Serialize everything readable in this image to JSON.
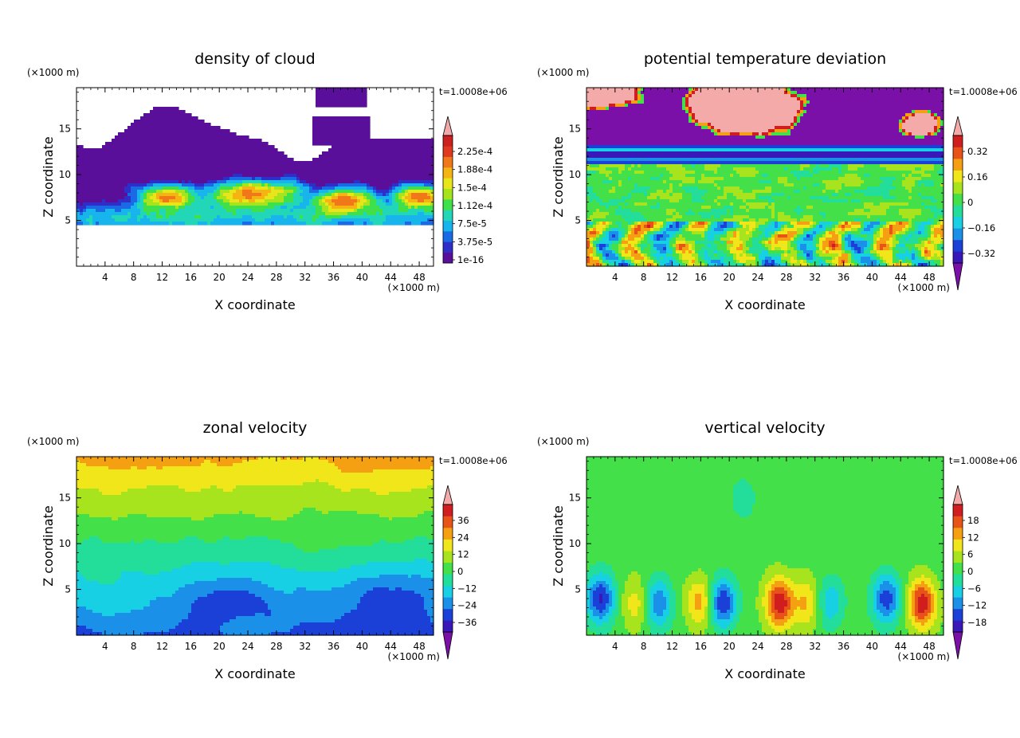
{
  "chart_data": [
    {
      "type": "heatmap",
      "title": "density of cloud",
      "xlabel": "X coordinate",
      "ylabel": "Z coordinate",
      "x_unit": "(×1000 m)",
      "y_unit": "(×1000 m)",
      "time_label": "t=1.0008e+06",
      "xlim": [
        0,
        50
      ],
      "ylim": [
        0,
        19.5
      ],
      "x_ticks": [
        "4",
        "8",
        "12",
        "16",
        "20",
        "24",
        "28",
        "32",
        "36",
        "40",
        "44",
        "48"
      ],
      "y_ticks": [
        "5",
        "10",
        "15"
      ],
      "colorbar_ticks": [
        "2.25e-4",
        "1.88e-4",
        "1.5e-4",
        "1.12e-4",
        "7.5e-5",
        "3.75e-5",
        "1e-16"
      ],
      "colorbar_colors": [
        "#5a0f9a",
        "#2e2fc8",
        "#1a6ae6",
        "#18b4ec",
        "#22d7b8",
        "#3fe04a",
        "#a6e41e",
        "#e8e61a",
        "#f4b412",
        "#f07818",
        "#e03a1e",
        "#cc1f1f",
        "#f0a9a6"
      ],
      "field": "cloud"
    },
    {
      "type": "heatmap",
      "title": "potential temperature deviation",
      "xlabel": "X coordinate",
      "ylabel": "Z coordinate",
      "x_unit": "(×1000 m)",
      "y_unit": "(×1000 m)",
      "time_label": "t=1.0008e+06",
      "xlim": [
        0,
        50
      ],
      "ylim": [
        0,
        19.5
      ],
      "x_ticks": [
        "4",
        "8",
        "12",
        "16",
        "20",
        "24",
        "28",
        "32",
        "36",
        "40",
        "44",
        "48"
      ],
      "y_ticks": [
        "5",
        "10",
        "15"
      ],
      "colorbar_ticks": [
        "0.32",
        "0.16",
        "0",
        "−0.16",
        "−0.32"
      ],
      "colorbar_colors": [
        "#7a10a8",
        "#3818b8",
        "#1a40d8",
        "#1a90e8",
        "#18d0e4",
        "#22de9a",
        "#44e04a",
        "#a8e41e",
        "#f0e61a",
        "#f4a012",
        "#e85418",
        "#d01e1e",
        "#f3aaa8"
      ],
      "field": "theta"
    },
    {
      "type": "heatmap",
      "title": "zonal velocity",
      "xlabel": "X coordinate",
      "ylabel": "Z coordinate",
      "x_unit": "(×1000 m)",
      "y_unit": "(×1000 m)",
      "time_label": "t=1.0008e+06",
      "xlim": [
        0,
        50
      ],
      "ylim": [
        0,
        19.5
      ],
      "x_ticks": [
        "4",
        "8",
        "12",
        "16",
        "20",
        "24",
        "28",
        "32",
        "36",
        "40",
        "44",
        "48"
      ],
      "y_ticks": [
        "5",
        "10",
        "15"
      ],
      "colorbar_ticks": [
        "36",
        "24",
        "12",
        "0",
        "−12",
        "−24",
        "−36"
      ],
      "colorbar_colors": [
        "#7a10a8",
        "#3818b8",
        "#1a40d8",
        "#1a90e8",
        "#18d0e4",
        "#22de9a",
        "#44e04a",
        "#a8e41e",
        "#f0e61a",
        "#f4a012",
        "#e85418",
        "#d01e1e",
        "#f3aaa8"
      ],
      "field": "zonal"
    },
    {
      "type": "heatmap",
      "title": "vertical velocity",
      "xlabel": "X coordinate",
      "ylabel": "Z coordinate",
      "x_unit": "(×1000 m)",
      "y_unit": "(×1000 m)",
      "time_label": "t=1.0008e+06",
      "xlim": [
        0,
        50
      ],
      "ylim": [
        0,
        19.5
      ],
      "x_ticks": [
        "4",
        "8",
        "12",
        "16",
        "20",
        "24",
        "28",
        "32",
        "36",
        "40",
        "44",
        "48"
      ],
      "y_ticks": [
        "5",
        "10",
        "15"
      ],
      "colorbar_ticks": [
        "18",
        "12",
        "6",
        "0",
        "−6",
        "−12",
        "−18"
      ],
      "colorbar_colors": [
        "#7a10a8",
        "#3818b8",
        "#1a40d8",
        "#1a90e8",
        "#18d0e4",
        "#22de9a",
        "#44e04a",
        "#a8e41e",
        "#f0e61a",
        "#f4a012",
        "#e85418",
        "#d01e1e",
        "#f3aaa8"
      ],
      "field": "vertical"
    }
  ]
}
